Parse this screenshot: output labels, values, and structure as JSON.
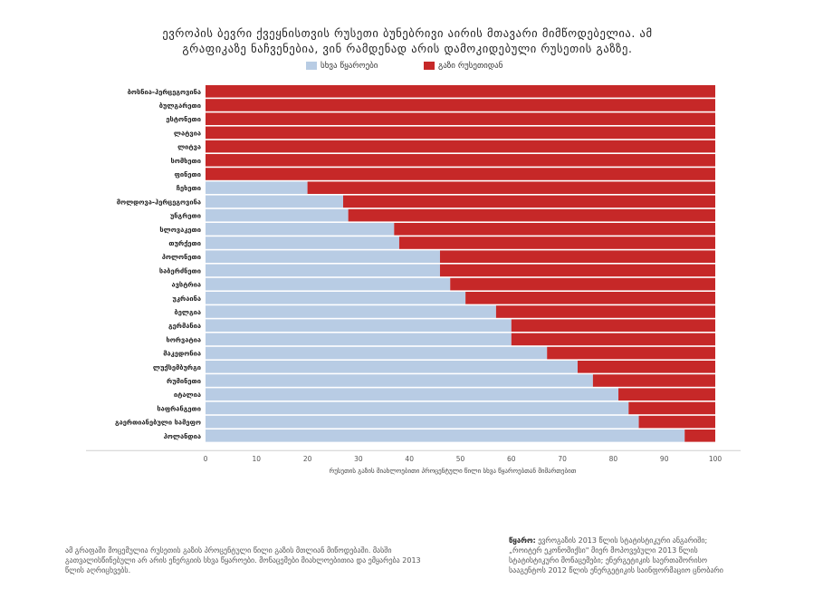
{
  "chart_data": {
    "type": "bar",
    "orientation": "horizontal",
    "stacked": true,
    "title": "ევროპის ბევრი ქვეყნისთვის რუსეთი ბუნებრივი აირის მთავარი მიმწოდებელია. ამ გრაფიკაზე ნაჩვენებია, ვინ რამდენად არის დამოკიდებული რუსეთის გაზზე.",
    "xlabel": "რუსეთის გაზის მიახლოებითი პროცენტული წილი სხვა წყაროებთან მიმართებით",
    "ylabel": "",
    "xlim": [
      0,
      100
    ],
    "xticks": [
      0,
      10,
      20,
      30,
      40,
      50,
      60,
      70,
      80,
      90,
      100
    ],
    "legend_position": "top",
    "categories": [
      "ბოსნია-ჰერცეგოვინა",
      "ბულგარეთი",
      "ესტონეთი",
      "ლატვია",
      "ლიტვა",
      "სომხეთი",
      "ფინეთი",
      "ჩეხეთი",
      "მოლდოვა-ჰერცეგოვინა",
      "უნგრეთი",
      "სლოვაკეთი",
      "თურქეთი",
      "პოლონეთი",
      "საბერძნეთი",
      "ავსტრია",
      "უკრაინა",
      "ბელგია",
      "გერმანია",
      "ხორვატია",
      "მაკედონია",
      "ლუქსემბურგი",
      "რუმინეთი",
      "იტალია",
      "საფრანგეთი",
      "გაერთიანებული სამეფო",
      "ჰოლანდია"
    ],
    "series": [
      {
        "name": "სხვა წყაროები",
        "color": "#b8cce4",
        "values": [
          0,
          0,
          0,
          0,
          0,
          0,
          0,
          20,
          27,
          28,
          37,
          38,
          46,
          46,
          48,
          51,
          57,
          60,
          60,
          67,
          73,
          76,
          81,
          83,
          85,
          94
        ]
      },
      {
        "name": "გაზი რუსეთიდან",
        "color": "#c62828",
        "values": [
          100,
          100,
          100,
          100,
          100,
          100,
          100,
          80,
          73,
          72,
          63,
          62,
          54,
          54,
          52,
          49,
          43,
          40,
          40,
          33,
          27,
          24,
          19,
          17,
          15,
          6
        ]
      }
    ],
    "grid": false
  },
  "notes": "ამ გრაფაში მოცემულია რუსეთის გაზის პროცენტული წილი გაზის მთლიან მიწოდებაში. მასში გათვალისწინებული არ არის ენერგიის სხვა წყაროები. მონაცემები მიახლოებითია და ემყარება 2013 წლის აღრიცხვებს.",
  "source": {
    "label": "წყარო:",
    "text": "ევროგაზის 2013 წლის სტატისტიკური ანგარიში; „როიტერ ეკონომიქსი\" მიერ მოპოვებული 2013 წლის სტატისტიკური მონაცემები; ენერგეტიკის საერთაშორისო სააგენტოს 2012 წლის ენერგეტიკის საინფორმაციო ცნობარი"
  }
}
